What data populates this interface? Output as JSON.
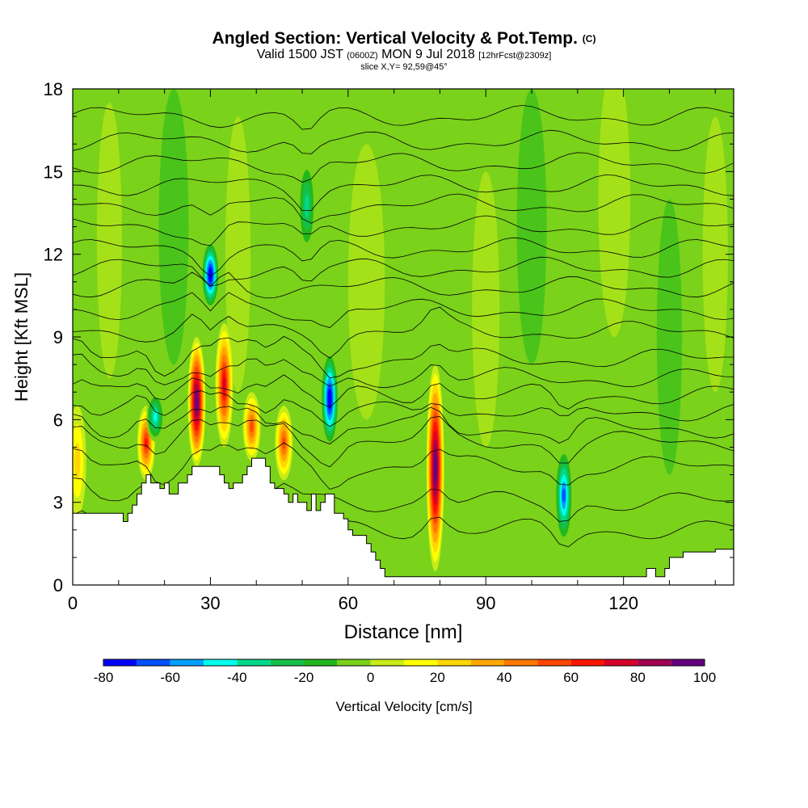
{
  "title": {
    "main": "Angled Section: Vertical Velocity & Pot.Temp.",
    "copyright_mark": "(C)",
    "valid_prefix": "Valid 1500 JST",
    "valid_zulu": "(0600Z)",
    "valid_date": "MON 9 Jul 2018",
    "forecast": "[12hrFcst@2309z]",
    "slice": "slice X,Y= 92,59@45°"
  },
  "chart_data": {
    "type": "heatmap",
    "title": "Angled Section: Vertical Velocity & Pot.Temp.",
    "xlabel": "Distance [nm]",
    "ylabel": "Height [Kft MSL]",
    "xlim": [
      0,
      144
    ],
    "ylim": [
      0,
      18
    ],
    "x_ticks": [
      0,
      30,
      60,
      90,
      120
    ],
    "y_ticks": [
      0,
      3,
      6,
      9,
      12,
      15,
      18
    ],
    "colorbar": {
      "label": "Vertical Velocity [cm/s]",
      "levels": [
        -80,
        -70,
        -60,
        -50,
        -40,
        -30,
        -20,
        -10,
        0,
        10,
        20,
        30,
        40,
        50,
        60,
        70,
        80,
        90,
        100
      ],
      "tick_labels": [
        -80,
        -60,
        -40,
        -20,
        0,
        20,
        40,
        60,
        80,
        100
      ],
      "colors": [
        "#0000ff",
        "#0050ff",
        "#00a0ff",
        "#00ffee",
        "#00d98c",
        "#14c04a",
        "#22b81c",
        "#7ad21a",
        "#c8ec18",
        "#ffff00",
        "#ffd700",
        "#ffa800",
        "#ff7800",
        "#ff4600",
        "#ff1400",
        "#d6002a",
        "#a00050",
        "#640080"
      ],
      "background": "#7ad21a"
    },
    "features": [
      {
        "kind": "updraft",
        "x": 27,
        "y_base": 4.3,
        "y_top": 9.0,
        "peak": 100
      },
      {
        "kind": "updraft",
        "x": 79,
        "y_base": 0.5,
        "y_top": 8.0,
        "peak": 100
      },
      {
        "kind": "updraft",
        "x": 33,
        "y_base": 5.0,
        "y_top": 9.5,
        "peak": 70
      },
      {
        "kind": "updraft",
        "x": 16,
        "y_base": 3.8,
        "y_top": 6.5,
        "peak": 60
      },
      {
        "kind": "updraft",
        "x": 39,
        "y_base": 4.5,
        "y_top": 7.0,
        "peak": 50
      },
      {
        "kind": "updraft",
        "x": 46,
        "y_base": 3.8,
        "y_top": 6.5,
        "peak": 50
      },
      {
        "kind": "updraft",
        "x": 1,
        "y_base": 2.5,
        "y_top": 6.5,
        "peak": 20
      },
      {
        "kind": "downdraft",
        "x": 56,
        "y_base": 5.0,
        "y_top": 8.5,
        "peak": -80
      },
      {
        "kind": "downdraft",
        "x": 30,
        "y_base": 10.0,
        "y_top": 12.5,
        "peak": -80
      },
      {
        "kind": "downdraft",
        "x": 107,
        "y_base": 1.5,
        "y_top": 5.0,
        "peak": -60
      },
      {
        "kind": "downdraft",
        "x": 18,
        "y_base": 5.2,
        "y_top": 7.0,
        "peak": -40
      },
      {
        "kind": "downdraft",
        "x": 51,
        "y_base": 12.0,
        "y_top": 15.5,
        "peak": -30
      }
    ],
    "terrain_profile": {
      "x": [
        0,
        10,
        11,
        12,
        13,
        14,
        15,
        16,
        17,
        18,
        19,
        20,
        21,
        22,
        23,
        24,
        25,
        26,
        27,
        28,
        29,
        30,
        31,
        32,
        33,
        34,
        35,
        36,
        37,
        38,
        39,
        40,
        41,
        42,
        43,
        44,
        45,
        46,
        47,
        48,
        49,
        50,
        51,
        52,
        53,
        54,
        55,
        56,
        57,
        58,
        59,
        60,
        61,
        62,
        63,
        64,
        65,
        66,
        67,
        68,
        69,
        70,
        75,
        80,
        85,
        90,
        95,
        100,
        105,
        110,
        115,
        120,
        125,
        126,
        127,
        128,
        129,
        130,
        131,
        132,
        133,
        134,
        135,
        140,
        144
      ],
      "height_kft": [
        2.6,
        2.6,
        2.3,
        2.6,
        2.9,
        3.3,
        3.7,
        4.0,
        3.7,
        3.7,
        3.5,
        3.7,
        3.3,
        3.3,
        3.7,
        3.7,
        4.0,
        4.3,
        4.3,
        4.3,
        4.3,
        4.3,
        4.3,
        4.0,
        3.7,
        3.5,
        3.7,
        3.7,
        4.0,
        4.3,
        4.6,
        4.6,
        4.6,
        4.3,
        3.7,
        3.5,
        3.5,
        3.3,
        3.0,
        3.3,
        3.0,
        3.0,
        2.7,
        3.3,
        2.7,
        3.0,
        3.3,
        3.3,
        2.6,
        2.6,
        2.4,
        2.0,
        1.8,
        1.8,
        1.8,
        1.5,
        1.2,
        0.9,
        0.6,
        0.3,
        0.3,
        0.3,
        0.3,
        0.3,
        0.3,
        0.3,
        0.3,
        0.3,
        0.3,
        0.3,
        0.3,
        0.3,
        0.6,
        0.6,
        0.3,
        0.3,
        0.6,
        1.0,
        1.0,
        1.0,
        1.2,
        1.2,
        1.2,
        1.3,
        1.3
      ]
    },
    "theta_contours": {
      "kind": "potential temperature isolines",
      "levels": 20,
      "base_heights_kft": [
        2.0,
        3.0,
        4.3,
        5.2,
        5.7,
        6.3,
        6.9,
        7.5,
        8.2,
        9.2,
        10.0,
        10.8,
        11.5,
        12.2,
        13.0,
        13.8,
        14.5,
        15.3,
        16.1,
        17.0
      ]
    }
  }
}
